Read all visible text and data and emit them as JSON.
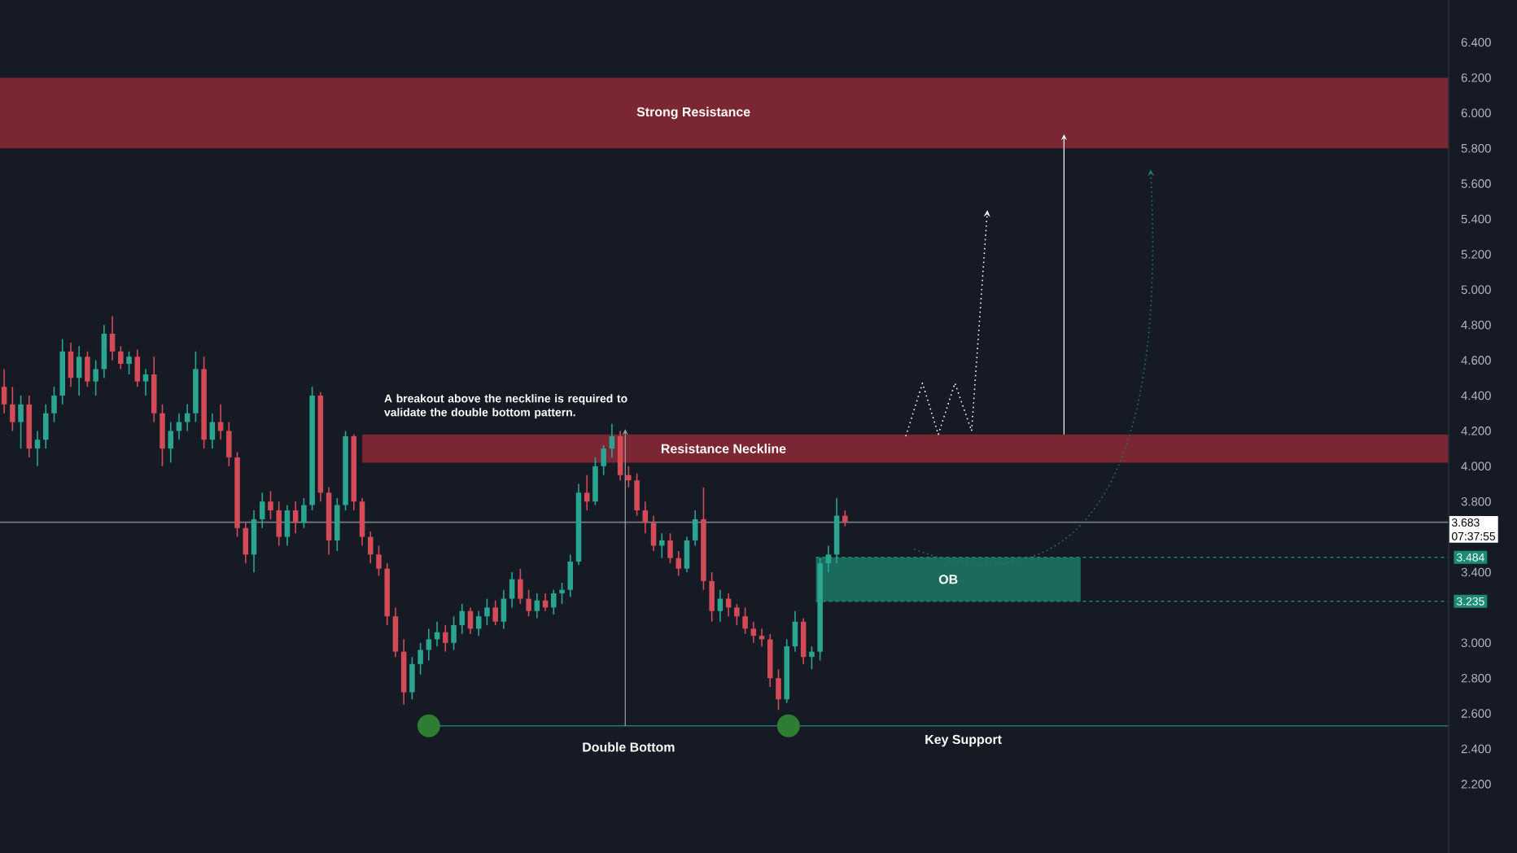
{
  "chart_data": {
    "type": "candlestick",
    "categories": [
      null,
      null,
      null,
      null,
      null,
      null,
      null,
      null,
      null,
      null,
      null,
      null,
      null,
      null,
      null,
      null,
      null,
      null,
      null,
      null,
      null,
      null,
      null,
      null,
      null,
      null,
      null,
      null,
      null,
      null,
      null,
      null,
      null,
      null,
      null,
      null,
      null,
      null,
      null,
      null,
      null,
      null,
      null,
      null,
      null,
      null,
      null,
      null,
      null,
      null,
      null,
      null,
      null,
      null,
      null,
      null,
      null,
      null,
      null,
      null,
      null,
      null,
      null,
      null,
      null,
      null,
      null,
      null,
      null,
      null,
      null,
      null,
      null,
      null,
      null,
      null,
      null,
      null,
      null,
      null,
      null,
      null,
      null,
      null,
      null,
      null,
      null,
      null,
      null,
      null,
      null,
      null,
      null,
      null,
      null,
      null,
      null,
      null,
      null,
      null,
      null,
      null,
      null,
      null,
      null,
      null,
      null,
      null,
      null,
      null,
      null,
      null,
      null,
      null,
      null,
      null,
      null,
      null,
      null,
      null,
      null,
      null,
      null,
      null,
      null,
      null,
      null,
      null,
      null,
      null,
      null,
      null,
      null,
      null,
      null,
      null,
      null,
      null,
      null,
      null,
      null,
      null,
      null,
      null,
      null,
      null,
      null,
      null,
      null,
      null,
      null,
      null,
      null,
      null,
      null,
      null,
      null,
      null,
      null,
      null,
      null,
      null,
      null,
      null,
      null,
      null,
      null,
      null,
      null,
      null,
      null,
      null,
      null,
      null
    ],
    "ohlc": [
      [
        4.45,
        4.55,
        4.3,
        4.35
      ],
      [
        4.35,
        4.45,
        4.2,
        4.25
      ],
      [
        4.25,
        4.4,
        4.1,
        4.35
      ],
      [
        4.35,
        4.4,
        4.05,
        4.1
      ],
      [
        4.1,
        4.2,
        4.0,
        4.15
      ],
      [
        4.15,
        4.35,
        4.1,
        4.3
      ],
      [
        4.3,
        4.45,
        4.25,
        4.4
      ],
      [
        4.4,
        4.72,
        4.35,
        4.65
      ],
      [
        4.65,
        4.7,
        4.45,
        4.5
      ],
      [
        4.5,
        4.68,
        4.4,
        4.62
      ],
      [
        4.62,
        4.65,
        4.45,
        4.48
      ],
      [
        4.48,
        4.6,
        4.4,
        4.55
      ],
      [
        4.55,
        4.8,
        4.5,
        4.75
      ],
      [
        4.75,
        4.85,
        4.6,
        4.65
      ],
      [
        4.65,
        4.68,
        4.55,
        4.58
      ],
      [
        4.58,
        4.65,
        4.52,
        4.62
      ],
      [
        4.62,
        4.66,
        4.45,
        4.48
      ],
      [
        4.48,
        4.55,
        4.4,
        4.52
      ],
      [
        4.52,
        4.62,
        4.25,
        4.3
      ],
      [
        4.3,
        4.35,
        4.0,
        4.1
      ],
      [
        4.1,
        4.25,
        4.02,
        4.2
      ],
      [
        4.2,
        4.3,
        4.15,
        4.25
      ],
      [
        4.25,
        4.35,
        4.2,
        4.3
      ],
      [
        4.3,
        4.65,
        4.25,
        4.55
      ],
      [
        4.55,
        4.62,
        4.1,
        4.15
      ],
      [
        4.15,
        4.3,
        4.1,
        4.25
      ],
      [
        4.25,
        4.35,
        4.15,
        4.2
      ],
      [
        4.2,
        4.25,
        4.0,
        4.05
      ],
      [
        4.05,
        4.08,
        3.6,
        3.65
      ],
      [
        3.65,
        3.68,
        3.45,
        3.5
      ],
      [
        3.5,
        3.75,
        3.4,
        3.7
      ],
      [
        3.7,
        3.85,
        3.65,
        3.8
      ],
      [
        3.8,
        3.86,
        3.7,
        3.75
      ],
      [
        3.75,
        3.8,
        3.55,
        3.6
      ],
      [
        3.6,
        3.78,
        3.55,
        3.75
      ],
      [
        3.75,
        3.8,
        3.62,
        3.68
      ],
      [
        3.68,
        3.82,
        3.65,
        3.78
      ],
      [
        3.78,
        4.45,
        3.75,
        4.4
      ],
      [
        4.4,
        4.42,
        3.8,
        3.85
      ],
      [
        3.85,
        3.88,
        3.5,
        3.58
      ],
      [
        3.58,
        3.82,
        3.52,
        3.78
      ],
      [
        3.78,
        4.2,
        3.75,
        4.17
      ],
      [
        4.17,
        4.18,
        3.75,
        3.8
      ],
      [
        3.8,
        3.82,
        3.55,
        3.6
      ],
      [
        3.6,
        3.63,
        3.45,
        3.5
      ],
      [
        3.5,
        3.55,
        3.38,
        3.42
      ],
      [
        3.42,
        3.45,
        3.1,
        3.15
      ],
      [
        3.15,
        3.2,
        2.92,
        2.95
      ],
      [
        2.95,
        3.02,
        2.65,
        2.72
      ],
      [
        2.72,
        2.92,
        2.68,
        2.88
      ],
      [
        2.88,
        3.0,
        2.82,
        2.96
      ],
      [
        2.96,
        3.08,
        2.9,
        3.02
      ],
      [
        3.02,
        3.12,
        2.98,
        3.06
      ],
      [
        3.06,
        3.1,
        2.95,
        3.0
      ],
      [
        3.0,
        3.15,
        2.96,
        3.1
      ],
      [
        3.1,
        3.22,
        3.05,
        3.18
      ],
      [
        3.18,
        3.2,
        3.05,
        3.08
      ],
      [
        3.08,
        3.18,
        3.04,
        3.15
      ],
      [
        3.15,
        3.25,
        3.1,
        3.2
      ],
      [
        3.2,
        3.24,
        3.1,
        3.12
      ],
      [
        3.12,
        3.3,
        3.08,
        3.25
      ],
      [
        3.25,
        3.4,
        3.2,
        3.36
      ],
      [
        3.36,
        3.42,
        3.22,
        3.25
      ],
      [
        3.25,
        3.3,
        3.15,
        3.18
      ],
      [
        3.18,
        3.28,
        3.14,
        3.24
      ],
      [
        3.24,
        3.28,
        3.18,
        3.2
      ],
      [
        3.2,
        3.3,
        3.16,
        3.28
      ],
      [
        3.28,
        3.34,
        3.22,
        3.3
      ],
      [
        3.3,
        3.5,
        3.26,
        3.46
      ],
      [
        3.46,
        3.9,
        3.44,
        3.85
      ],
      [
        3.85,
        3.95,
        3.75,
        3.8
      ],
      [
        3.8,
        4.05,
        3.78,
        4.0
      ],
      [
        4.0,
        4.12,
        3.95,
        4.1
      ],
      [
        4.1,
        4.24,
        4.05,
        4.17
      ],
      [
        4.17,
        4.2,
        3.92,
        3.95
      ],
      [
        3.95,
        4.0,
        3.88,
        3.92
      ],
      [
        3.92,
        3.96,
        3.72,
        3.75
      ],
      [
        3.75,
        3.8,
        3.62,
        3.68
      ],
      [
        3.68,
        3.72,
        3.52,
        3.55
      ],
      [
        3.55,
        3.62,
        3.48,
        3.58
      ],
      [
        3.58,
        3.62,
        3.45,
        3.48
      ],
      [
        3.48,
        3.52,
        3.38,
        3.42
      ],
      [
        3.42,
        3.6,
        3.4,
        3.58
      ],
      [
        3.58,
        3.75,
        3.55,
        3.7
      ],
      [
        3.7,
        3.88,
        3.3,
        3.35
      ],
      [
        3.35,
        3.4,
        3.12,
        3.18
      ],
      [
        3.18,
        3.3,
        3.12,
        3.25
      ],
      [
        3.25,
        3.28,
        3.15,
        3.2
      ],
      [
        3.2,
        3.22,
        3.1,
        3.15
      ],
      [
        3.15,
        3.2,
        3.05,
        3.08
      ],
      [
        3.08,
        3.12,
        3.0,
        3.04
      ],
      [
        3.04,
        3.08,
        2.98,
        3.02
      ],
      [
        3.02,
        3.05,
        2.75,
        2.8
      ],
      [
        2.8,
        2.85,
        2.62,
        2.68
      ],
      [
        2.68,
        3.02,
        2.66,
        2.98
      ],
      [
        2.98,
        3.18,
        2.95,
        3.12
      ],
      [
        3.12,
        3.14,
        2.88,
        2.92
      ],
      [
        2.92,
        2.98,
        2.85,
        2.95
      ],
      [
        2.95,
        3.48,
        2.9,
        3.45
      ],
      [
        3.45,
        3.55,
        3.4,
        3.5
      ],
      [
        3.5,
        3.82,
        3.45,
        3.72
      ],
      [
        3.72,
        3.75,
        3.66,
        3.683
      ],
      null,
      null,
      null,
      null,
      null,
      null,
      null,
      null,
      null,
      null,
      null,
      null,
      null,
      null,
      null,
      null,
      null,
      null,
      null,
      null,
      null,
      null,
      null,
      null,
      null,
      null,
      null,
      null,
      null,
      null,
      null,
      null,
      null,
      null,
      null,
      null,
      null,
      null,
      null,
      null,
      null,
      null,
      null,
      null,
      null,
      null,
      null,
      null,
      null,
      null,
      null,
      null,
      null,
      null,
      null,
      null,
      null,
      null,
      null,
      null,
      null,
      null,
      null,
      null,
      null,
      null,
      null,
      null,
      null,
      null,
      null,
      null
    ],
    "colors": [
      "#d24b57",
      "#d24b57",
      "#2aa58f",
      "#d24b57",
      "#2aa58f",
      "#2aa58f",
      "#2aa58f",
      "#2aa58f",
      "#d24b57",
      "#2aa58f",
      "#d24b57",
      "#2aa58f",
      "#2aa58f",
      "#d24b57",
      "#d24b57",
      "#2aa58f",
      "#d24b57",
      "#2aa58f",
      "#d24b57",
      "#d24b57",
      "#2aa58f",
      "#2aa58f",
      "#2aa58f",
      "#2aa58f",
      "#d24b57",
      "#2aa58f",
      "#d24b57",
      "#d24b57",
      "#d24b57",
      "#d24b57",
      "#2aa58f",
      "#2aa58f",
      "#d24b57",
      "#d24b57",
      "#2aa58f",
      "#d24b57",
      "#2aa58f",
      "#2aa58f",
      "#d24b57",
      "#d24b57",
      "#2aa58f",
      "#2aa58f",
      "#d24b57",
      "#d24b57",
      "#d24b57",
      "#d24b57",
      "#d24b57",
      "#d24b57",
      "#d24b57",
      "#2aa58f",
      "#2aa58f",
      "#2aa58f",
      "#2aa58f",
      "#d24b57",
      "#2aa58f",
      "#2aa58f",
      "#d24b57",
      "#2aa58f",
      "#2aa58f",
      "#d24b57",
      "#2aa58f",
      "#2aa58f",
      "#d24b57",
      "#d24b57",
      "#2aa58f",
      "#d24b57",
      "#2aa58f",
      "#2aa58f",
      "#2aa58f",
      "#2aa58f",
      "#d24b57",
      "#2aa58f",
      "#2aa58f",
      "#2aa58f",
      "#d24b57",
      "#d24b57",
      "#d24b57",
      "#d24b57",
      "#d24b57",
      "#2aa58f",
      "#d24b57",
      "#d24b57",
      "#2aa58f",
      "#2aa58f",
      "#d24b57",
      "#d24b57",
      "#2aa58f",
      "#d24b57",
      "#d24b57",
      "#d24b57",
      "#d24b57",
      "#d24b57",
      "#d24b57",
      "#d24b57",
      "#2aa58f",
      "#2aa58f",
      "#d24b57",
      "#2aa58f",
      "#2aa58f",
      "#2aa58f",
      "#2aa58f",
      "#d24b57",
      null,
      null,
      null,
      null,
      null,
      null,
      null,
      null,
      null,
      null,
      null,
      null,
      null,
      null,
      null,
      null,
      null,
      null,
      null,
      null,
      null,
      null,
      null,
      null,
      null,
      null,
      null,
      null,
      null,
      null,
      null,
      null,
      null,
      null,
      null,
      null,
      null,
      null,
      null,
      null,
      null,
      null,
      null,
      null,
      null,
      null,
      null,
      null,
      null,
      null,
      null,
      null,
      null,
      null,
      null,
      null,
      null,
      null,
      null,
      null,
      null,
      null,
      null,
      null,
      null,
      null,
      null,
      null,
      null,
      null,
      null,
      null
    ],
    "ylim": [
      1.81,
      6.64
    ],
    "yticks": [
      {
        "value": 2.2,
        "label": "2.200"
      },
      {
        "value": 2.4,
        "label": "2.400"
      },
      {
        "value": 2.6,
        "label": "2.600"
      },
      {
        "value": 2.8,
        "label": "2.800"
      },
      {
        "value": 3.0,
        "label": "3.000"
      },
      {
        "value": 3.4,
        "label": "3.400"
      },
      {
        "value": 3.8,
        "label": "3.800"
      },
      {
        "value": 4.0,
        "label": "4.000"
      },
      {
        "value": 4.2,
        "label": "4.200"
      },
      {
        "value": 4.4,
        "label": "4.400"
      },
      {
        "value": 4.6,
        "label": "4.600"
      },
      {
        "value": 4.8,
        "label": "4.800"
      },
      {
        "value": 5.0,
        "label": "5.000"
      },
      {
        "value": 5.2,
        "label": "5.200"
      },
      {
        "value": 5.4,
        "label": "5.400"
      },
      {
        "value": 5.6,
        "label": "5.600"
      },
      {
        "value": 5.8,
        "label": "5.800"
      },
      {
        "value": 6.0,
        "label": "6.000"
      },
      {
        "value": 6.2,
        "label": "6.200"
      },
      {
        "value": 6.4,
        "label": "6.400"
      }
    ],
    "tick_labels": "y",
    "bands": [
      {
        "axis": "y",
        "from": 5.8,
        "to": 6.2,
        "label": "Strong Resistance",
        "color": "#7b2733"
      },
      {
        "axis": "y",
        "from": 4.02,
        "to": 4.18,
        "label": "Resistance Neckline",
        "color": "#7b2733"
      },
      {
        "axis": "y",
        "from": 3.235,
        "to": 3.484,
        "label": "OB",
        "color": "#1b6b5d"
      }
    ],
    "ref_lines": [
      {
        "axis": "y",
        "value": 3.683,
        "label": "3.683",
        "color": "#787b86",
        "line_style": "solid"
      },
      {
        "axis": "y",
        "value": 3.484,
        "label": "3.484",
        "color": "#1b8a76",
        "line_style": "dashed"
      },
      {
        "axis": "y",
        "value": 3.235,
        "label": "3.235",
        "color": "#1b8a76",
        "line_style": "dashed"
      },
      {
        "axis": "y",
        "value": 2.53,
        "label": "Key Support",
        "color": "#1e7a6a",
        "line_style": "solid"
      }
    ],
    "annotations": [
      "A breakout above the neckline is required to validate the double bottom pattern.",
      "Double Bottom",
      "07:37:55"
    ]
  }
}
